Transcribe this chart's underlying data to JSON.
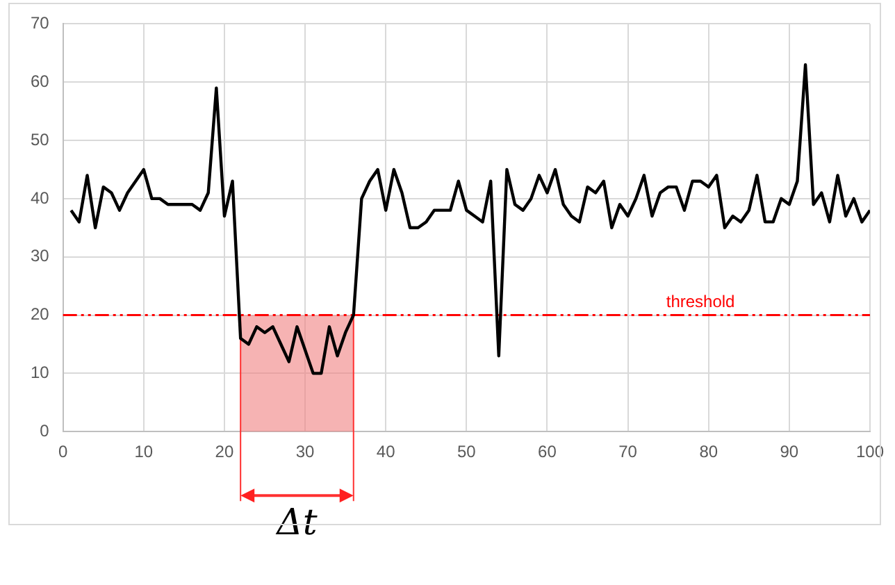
{
  "chart_data": {
    "type": "line",
    "x": [
      1,
      2,
      3,
      4,
      5,
      6,
      7,
      8,
      9,
      10,
      11,
      12,
      13,
      14,
      15,
      16,
      17,
      18,
      19,
      20,
      21,
      22,
      23,
      24,
      25,
      26,
      27,
      28,
      29,
      30,
      31,
      32,
      33,
      34,
      35,
      36,
      37,
      38,
      39,
      40,
      41,
      42,
      43,
      44,
      45,
      46,
      47,
      48,
      49,
      50,
      51,
      52,
      53,
      54,
      55,
      56,
      57,
      58,
      59,
      60,
      61,
      62,
      63,
      64,
      65,
      66,
      67,
      68,
      69,
      70,
      71,
      72,
      73,
      74,
      75,
      76,
      77,
      78,
      79,
      80,
      81,
      82,
      83,
      84,
      85,
      86,
      87,
      88,
      89,
      90,
      91,
      92,
      93,
      94,
      95,
      96,
      97,
      98,
      99,
      100
    ],
    "series": [
      {
        "color": "#000000",
        "values": [
          38,
          36,
          44,
          35,
          42,
          41,
          38,
          41,
          43,
          45,
          40,
          40,
          39,
          39,
          39,
          39,
          38,
          41,
          59,
          37,
          43,
          16,
          15,
          18,
          17,
          18,
          15,
          12,
          18,
          14,
          10,
          10,
          18,
          13,
          17,
          20,
          40,
          43,
          45,
          38,
          45,
          41,
          35,
          35,
          36,
          38,
          38,
          38,
          43,
          38,
          37,
          36,
          43,
          13,
          45,
          39,
          38,
          40,
          44,
          41,
          45,
          39,
          37,
          36,
          42,
          41,
          43,
          35,
          39,
          37,
          40,
          44,
          37,
          41,
          42,
          42,
          38,
          43,
          43,
          42,
          44,
          35,
          37,
          36,
          38,
          44,
          36,
          36,
          40,
          39,
          43,
          63,
          39,
          41,
          36,
          44,
          37,
          40,
          36,
          38
        ]
      }
    ],
    "xlim": [
      0,
      100
    ],
    "xticks": [
      0,
      10,
      20,
      30,
      40,
      50,
      60,
      70,
      80,
      90,
      100
    ],
    "ylim": [
      0,
      70
    ],
    "yticks": [
      0,
      10,
      20,
      30,
      40,
      50,
      60,
      70
    ],
    "grid": true,
    "legend": false,
    "marker": "none",
    "line_style": "solid",
    "ref_lines": [
      {
        "axis": "y",
        "value": 20,
        "label": "threshold",
        "color": "#ff0000",
        "line_style": "dashed"
      }
    ],
    "bands": [
      {
        "axis": "x",
        "from": 22,
        "to": 36,
        "label": "Δt",
        "color": "#f08080"
      }
    ]
  }
}
